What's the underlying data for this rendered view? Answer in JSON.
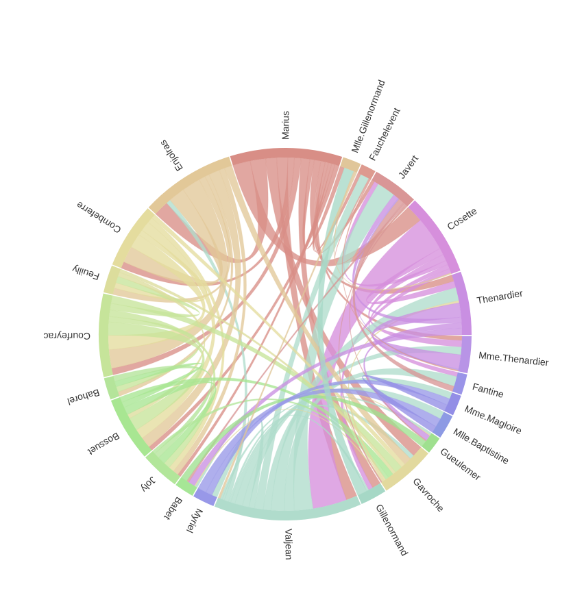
{
  "chart_data": {
    "type": "chord",
    "nodes": [
      {
        "name": "Marius",
        "color": "#d88e86"
      },
      {
        "name": "Mlle.Gillenormand",
        "color": "#e0c69a"
      },
      {
        "name": "Fauchelevent",
        "color": "#dd9a8f"
      },
      {
        "name": "Javert",
        "color": "#d99696"
      },
      {
        "name": "Cosette",
        "color": "#d68fdc"
      },
      {
        "name": "Thenardier",
        "color": "#c98fe2"
      },
      {
        "name": "Mme.Thenardier",
        "color": "#b894e6"
      },
      {
        "name": "Fantine",
        "color": "#9a94e8"
      },
      {
        "name": "Mme.Magloire",
        "color": "#938ee6"
      },
      {
        "name": "Mlle.Baptistine",
        "color": "#8d9ae4"
      },
      {
        "name": "Gueulemer",
        "color": "#9fe08f"
      },
      {
        "name": "Gavroche",
        "color": "#e2d99e"
      },
      {
        "name": "Gillenormand",
        "color": "#a6d8c6"
      },
      {
        "name": "Valjean",
        "color": "#b0dccc"
      },
      {
        "name": "Myriel",
        "color": "#9898e8"
      },
      {
        "name": "Babet",
        "color": "#a6e696"
      },
      {
        "name": "Joly",
        "color": "#b2e69a"
      },
      {
        "name": "Bossuet",
        "color": "#a8e692"
      },
      {
        "name": "Bahorel",
        "color": "#b4e49a"
      },
      {
        "name": "Courfeyrac",
        "color": "#c6e49a"
      },
      {
        "name": "Feuilly",
        "color": "#dcdd9c"
      },
      {
        "name": "Combeferre",
        "color": "#e4dc9e"
      },
      {
        "name": "Enjolras",
        "color": "#e2c898"
      }
    ],
    "links": [
      {
        "source": "Marius",
        "target": "Cosette",
        "value": 16
      },
      {
        "source": "Marius",
        "target": "Enjolras",
        "value": 14
      },
      {
        "source": "Marius",
        "target": "Gavroche",
        "value": 10
      },
      {
        "source": "Marius",
        "target": "Valjean",
        "value": 10
      },
      {
        "source": "Marius",
        "target": "Combeferre",
        "value": 6
      },
      {
        "source": "Marius",
        "target": "Courfeyrac",
        "value": 6
      },
      {
        "source": "Marius",
        "target": "Gillenormand",
        "value": 8
      },
      {
        "source": "Marius",
        "target": "Mlle.Gillenormand",
        "value": 4
      },
      {
        "source": "Marius",
        "target": "Thenardier",
        "value": 6
      },
      {
        "source": "Marius",
        "target": "Mme.Thenardier",
        "value": 4
      },
      {
        "source": "Marius",
        "target": "Javert",
        "value": 3
      },
      {
        "source": "Marius",
        "target": "Fauchelevent",
        "value": 3
      },
      {
        "source": "Marius",
        "target": "Joly",
        "value": 3
      },
      {
        "source": "Marius",
        "target": "Bossuet",
        "value": 4
      },
      {
        "source": "Cosette",
        "target": "Valjean",
        "value": 31
      },
      {
        "source": "Cosette",
        "target": "Thenardier",
        "value": 6
      },
      {
        "source": "Cosette",
        "target": "Mme.Thenardier",
        "value": 6
      },
      {
        "source": "Cosette",
        "target": "Javert",
        "value": 4
      },
      {
        "source": "Cosette",
        "target": "Fantine",
        "value": 4
      },
      {
        "source": "Cosette",
        "target": "Gillenormand",
        "value": 4
      },
      {
        "source": "Valjean",
        "target": "Javert",
        "value": 17
      },
      {
        "source": "Valjean",
        "target": "Fantine",
        "value": 9
      },
      {
        "source": "Valjean",
        "target": "Thenardier",
        "value": 12
      },
      {
        "source": "Valjean",
        "target": "Mme.Thenardier",
        "value": 7
      },
      {
        "source": "Valjean",
        "target": "Fauchelevent",
        "value": 8
      },
      {
        "source": "Valjean",
        "target": "Myriel",
        "value": 5
      },
      {
        "source": "Valjean",
        "target": "Mme.Magloire",
        "value": 6
      },
      {
        "source": "Valjean",
        "target": "Mlle.Baptistine",
        "value": 7
      },
      {
        "source": "Valjean",
        "target": "Gavroche",
        "value": 4
      },
      {
        "source": "Valjean",
        "target": "Gillenormand",
        "value": 2
      },
      {
        "source": "Valjean",
        "target": "Enjolras",
        "value": 4
      },
      {
        "source": "Valjean",
        "target": "Babet",
        "value": 2
      },
      {
        "source": "Valjean",
        "target": "Gueulemer",
        "value": 2
      },
      {
        "source": "Enjolras",
        "target": "Combeferre",
        "value": 15
      },
      {
        "source": "Enjolras",
        "target": "Courfeyrac",
        "value": 17
      },
      {
        "source": "Enjolras",
        "target": "Feuilly",
        "value": 6
      },
      {
        "source": "Enjolras",
        "target": "Bahorel",
        "value": 4
      },
      {
        "source": "Enjolras",
        "target": "Bossuet",
        "value": 10
      },
      {
        "source": "Enjolras",
        "target": "Joly",
        "value": 5
      },
      {
        "source": "Enjolras",
        "target": "Gavroche",
        "value": 7
      },
      {
        "source": "Combeferre",
        "target": "Courfeyrac",
        "value": 13
      },
      {
        "source": "Combeferre",
        "target": "Feuilly",
        "value": 5
      },
      {
        "source": "Combeferre",
        "target": "Bossuet",
        "value": 9
      },
      {
        "source": "Combeferre",
        "target": "Joly",
        "value": 5
      },
      {
        "source": "Combeferre",
        "target": "Gavroche",
        "value": 4
      },
      {
        "source": "Courfeyrac",
        "target": "Bossuet",
        "value": 12
      },
      {
        "source": "Courfeyrac",
        "target": "Bahorel",
        "value": 5
      },
      {
        "source": "Courfeyrac",
        "target": "Joly",
        "value": 6
      },
      {
        "source": "Courfeyrac",
        "target": "Feuilly",
        "value": 6
      },
      {
        "source": "Courfeyrac",
        "target": "Gavroche",
        "value": 7
      },
      {
        "source": "Feuilly",
        "target": "Bossuet",
        "value": 4
      },
      {
        "source": "Feuilly",
        "target": "Gavroche",
        "value": 3
      },
      {
        "source": "Bossuet",
        "target": "Joly",
        "value": 7
      },
      {
        "source": "Bossuet",
        "target": "Bahorel",
        "value": 5
      },
      {
        "source": "Bossuet",
        "target": "Gavroche",
        "value": 5
      },
      {
        "source": "Bahorel",
        "target": "Joly",
        "value": 5
      },
      {
        "source": "Joly",
        "target": "Gavroche",
        "value": 3
      },
      {
        "source": "Gavroche",
        "target": "Thenardier",
        "value": 2
      },
      {
        "source": "Gavroche",
        "target": "Gueulemer",
        "value": 1
      },
      {
        "source": "Gavroche",
        "target": "Babet",
        "value": 1
      },
      {
        "source": "Thenardier",
        "target": "Mme.Thenardier",
        "value": 13
      },
      {
        "source": "Thenardier",
        "target": "Javert",
        "value": 5
      },
      {
        "source": "Thenardier",
        "target": "Gueulemer",
        "value": 5
      },
      {
        "source": "Thenardier",
        "target": "Babet",
        "value": 6
      },
      {
        "source": "Mme.Thenardier",
        "target": "Javert",
        "value": 1
      },
      {
        "source": "Javert",
        "target": "Fantine",
        "value": 5
      },
      {
        "source": "Javert",
        "target": "Gueulemer",
        "value": 1
      },
      {
        "source": "Javert",
        "target": "Babet",
        "value": 2
      },
      {
        "source": "Javert",
        "target": "Gavroche",
        "value": 1
      },
      {
        "source": "Fauchelevent",
        "target": "Javert",
        "value": 1
      },
      {
        "source": "Fauchelevent",
        "target": "Mme.Thenardier",
        "value": 1
      },
      {
        "source": "Gueulemer",
        "target": "Babet",
        "value": 6
      },
      {
        "source": "Myriel",
        "target": "Mme.Magloire",
        "value": 6
      },
      {
        "source": "Myriel",
        "target": "Mlle.Baptistine",
        "value": 8
      },
      {
        "source": "Mme.Magloire",
        "target": "Mlle.Baptistine",
        "value": 6
      },
      {
        "source": "Gillenormand",
        "target": "Mlle.Gillenormand",
        "value": 9
      },
      {
        "source": "Mlle.Gillenormand",
        "target": "Cosette",
        "value": 1
      },
      {
        "source": "Mlle.Gillenormand",
        "target": "Valjean",
        "value": 2
      }
    ]
  }
}
